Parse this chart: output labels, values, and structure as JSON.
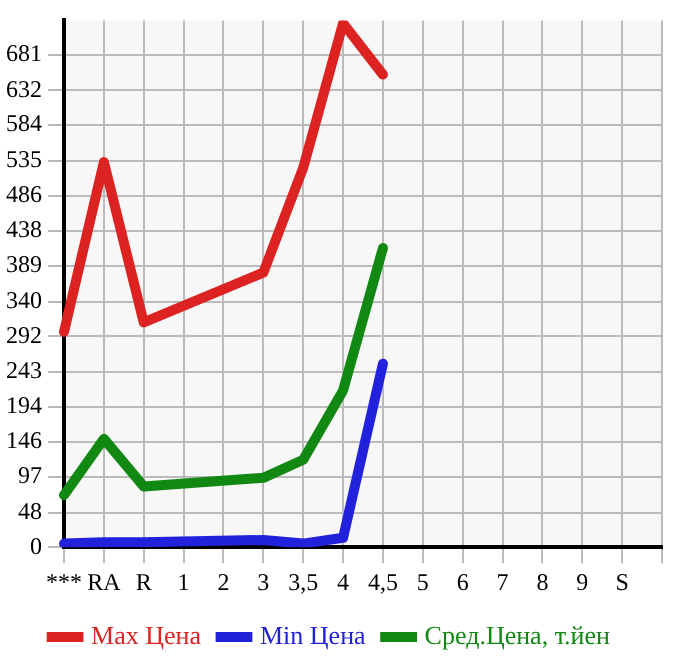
{
  "chart_data": {
    "type": "line",
    "categories": [
      "***",
      "RA",
      "R",
      "1",
      "2",
      "3",
      "3,5",
      "4",
      "4,5",
      "5",
      "6",
      "7",
      "8",
      "9",
      "S",
      null
    ],
    "series": [
      {
        "name": "Max Цена",
        "color": "#dd2222",
        "values": [
          298,
          533,
          311,
          null,
          null,
          380,
          525,
          725,
          654,
          null,
          null,
          null,
          null,
          null,
          null,
          null
        ]
      },
      {
        "name": "Min Цена",
        "color": "#2222dd",
        "values": [
          5,
          7,
          7,
          null,
          null,
          10,
          5,
          13,
          254,
          null,
          null,
          null,
          null,
          null,
          null,
          null
        ]
      },
      {
        "name": "Сред.Цена, т.йен",
        "color": "#118811",
        "values": [
          72,
          150,
          84,
          null,
          null,
          96,
          121,
          217,
          414,
          null,
          null,
          null,
          null,
          null,
          null,
          null
        ]
      }
    ],
    "ylim": [
      0,
      729
    ],
    "yticks": [
      0,
      48,
      97,
      146,
      194,
      243,
      292,
      340,
      389,
      438,
      486,
      535,
      584,
      632,
      681
    ],
    "grid": true,
    "legend": "bottom",
    "marker": "none",
    "line_style": "solid"
  }
}
